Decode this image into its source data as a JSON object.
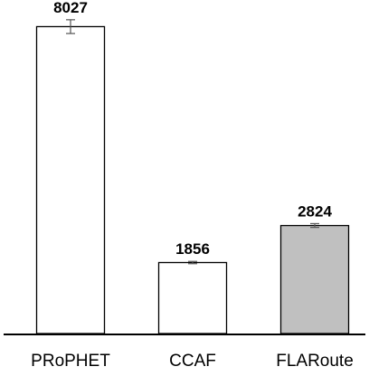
{
  "chart_data": {
    "type": "bar",
    "categories": [
      "PRoPHET",
      "CCAF",
      "FLARoute"
    ],
    "values": [
      8027,
      1856,
      2824
    ],
    "data_labels": [
      "8027",
      "1856",
      "2824"
    ],
    "error_bars": [
      180,
      30,
      50
    ],
    "bar_colors": [
      "#ffffff",
      "#ffffff",
      "#c0c0c0"
    ],
    "edge_color": "#000000",
    "error_bar_color": "#555555",
    "title": "",
    "xlabel": "",
    "ylabel": "",
    "ylim": [
      0,
      8700
    ],
    "grid": false,
    "legend": "none"
  }
}
